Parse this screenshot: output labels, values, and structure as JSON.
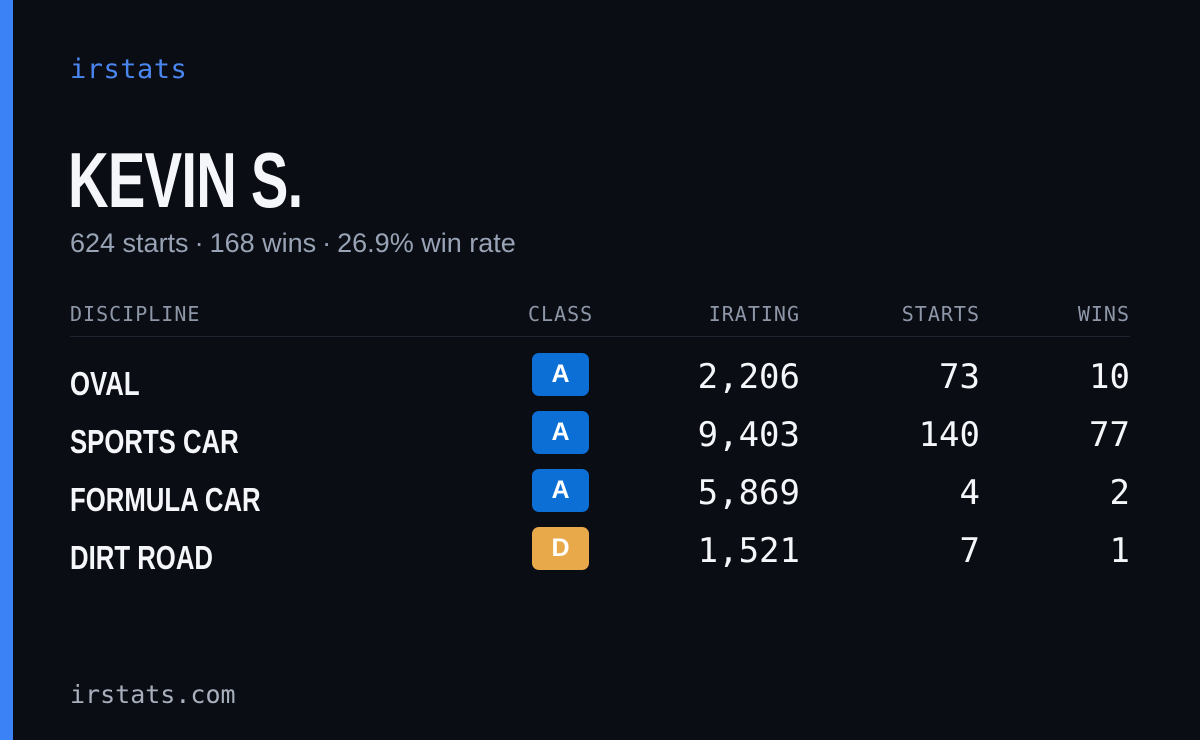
{
  "brand": "irstats",
  "driver": {
    "name": "KEVIN S.",
    "starts_text": "624 starts",
    "wins_text": "168 wins",
    "win_rate_text": "26.9% win rate",
    "separator": "·"
  },
  "table": {
    "headers": {
      "discipline": "DISCIPLINE",
      "class": "CLASS",
      "irating": "IRATING",
      "starts": "STARTS",
      "wins": "WINS"
    },
    "rows": [
      {
        "discipline": "OVAL",
        "class": "A",
        "irating": "2,206",
        "starts": "73",
        "wins": "10"
      },
      {
        "discipline": "SPORTS CAR",
        "class": "A",
        "irating": "9,403",
        "starts": "140",
        "wins": "77"
      },
      {
        "discipline": "FORMULA CAR",
        "class": "A",
        "irating": "5,869",
        "starts": "4",
        "wins": "2"
      },
      {
        "discipline": "DIRT ROAD",
        "class": "D",
        "irating": "1,521",
        "starts": "7",
        "wins": "1"
      }
    ]
  },
  "class_colors": {
    "A": "#0b6fd6",
    "D": "#e8a94a"
  },
  "accent_color": "#3b82f6",
  "footer": {
    "url": "irstats.com"
  }
}
